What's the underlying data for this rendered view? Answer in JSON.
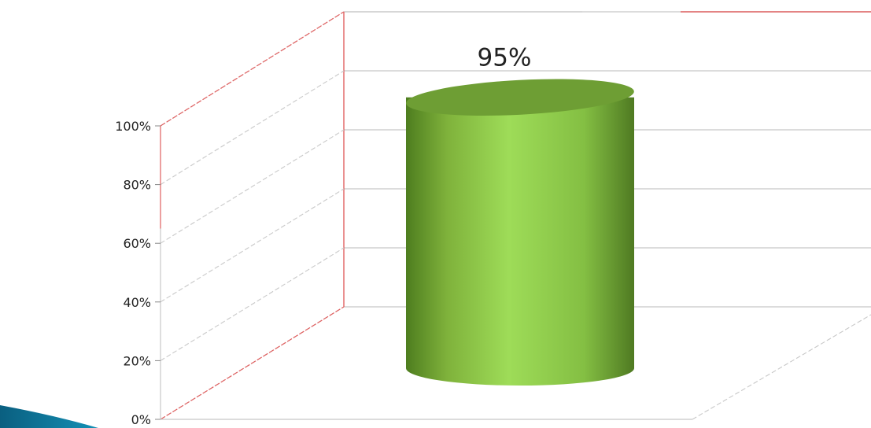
{
  "chart_data": {
    "type": "bar",
    "style": "3d-cylinder",
    "categories": [
      ""
    ],
    "values": [
      95
    ],
    "data_labels": [
      "95%"
    ],
    "y_tick_labels": [
      "0%",
      "20%",
      "40%",
      "60%",
      "80%",
      "100%"
    ],
    "ylim": [
      0,
      100
    ],
    "grid": true,
    "legend": "none",
    "title": "",
    "xlabel": "",
    "ylabel": ""
  },
  "colors": {
    "bar": "#8cc63f",
    "bar_top": "#6e9e34",
    "bar_shadow": "#55802a",
    "axis_accent": "#e06060",
    "grid": "#c8c8c8",
    "decoration": "#0e6d8f"
  }
}
